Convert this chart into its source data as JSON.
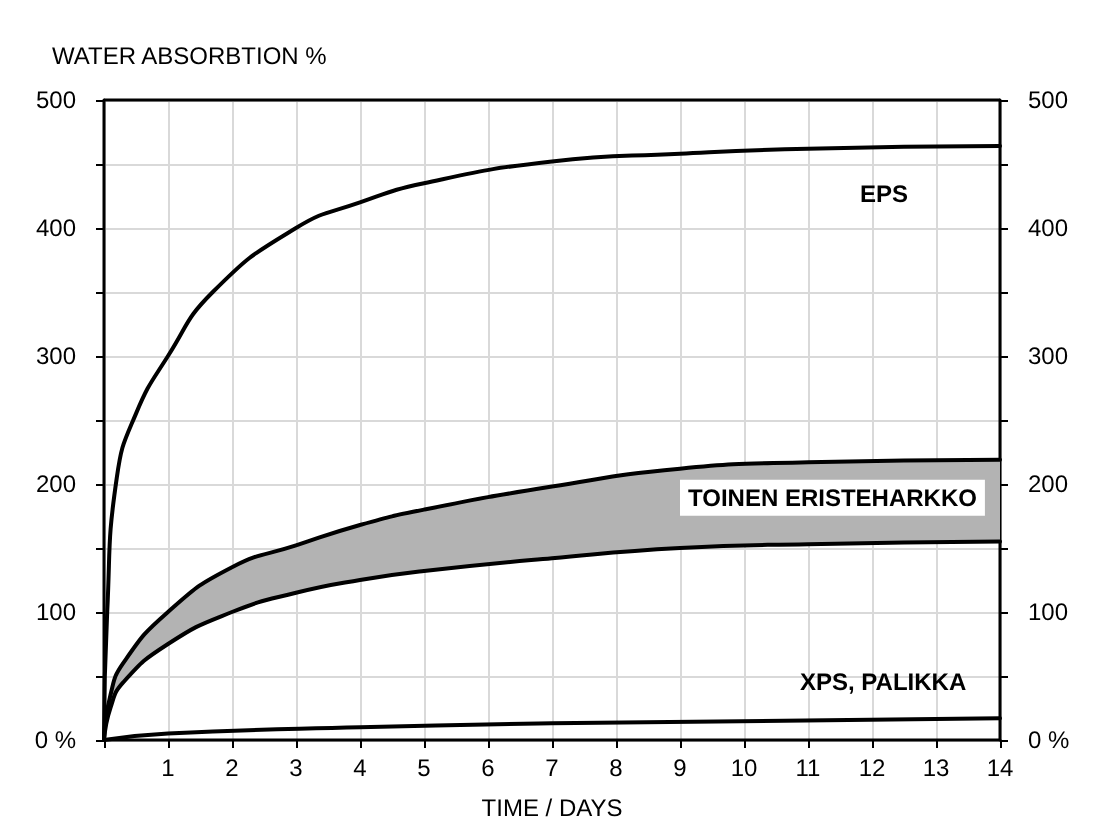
{
  "chart_data": {
    "type": "line",
    "ylabel": "WATER ABSORBTION %",
    "xlabel": "TIME / DAYS",
    "xlim": [
      0,
      14
    ],
    "xticks": [
      {
        "value": 0,
        "label": null
      },
      1,
      2,
      3,
      4,
      5,
      6,
      7,
      8,
      9,
      10,
      11,
      12,
      13,
      14
    ],
    "ylim": [
      0,
      500
    ],
    "yticks": [
      {
        "value": 0,
        "label": "0 %"
      },
      {
        "value": 50,
        "label": null
      },
      100,
      {
        "value": 150,
        "label": null
      },
      200,
      {
        "value": 250,
        "label": null
      },
      300,
      {
        "value": 350,
        "label": null
      },
      400,
      {
        "value": 450,
        "label": null
      },
      500
    ],
    "y2lim": [
      0,
      500
    ],
    "y2ticks": [
      {
        "value": 0,
        "label": "0 %"
      },
      {
        "value": 50,
        "label": null
      },
      100,
      {
        "value": 150,
        "label": null
      },
      200,
      {
        "value": 250,
        "label": null
      },
      300,
      {
        "value": 350,
        "label": null
      },
      400,
      {
        "value": 450,
        "label": null
      },
      500
    ],
    "grid": true,
    "marker": "none",
    "line_style": "solid",
    "series": [
      {
        "name": "EPS",
        "color": "#000000",
        "x": [
          0,
          0.05,
          0.2,
          0.5,
          1,
          1.7,
          3,
          4,
          5,
          7,
          9,
          11,
          14
        ],
        "values": [
          0,
          100,
          205,
          255,
          300,
          350,
          400,
          420,
          435,
          452,
          458,
          462,
          464
        ]
      },
      {
        "name": "TOINEN ERISTEHARKKO",
        "color": "#000000",
        "x": [
          0,
          0.1,
          0.3,
          1,
          2,
          3,
          4,
          5,
          7,
          9,
          11,
          14
        ],
        "values": [
          0,
          35,
          60,
          100,
          135,
          152,
          168,
          180,
          198,
          212,
          217,
          219
        ],
        "lower": [
          0,
          25,
          45,
          75,
          100,
          115,
          125,
          132,
          142,
          150,
          153,
          155
        ],
        "upper": [
          0,
          35,
          60,
          100,
          135,
          152,
          168,
          180,
          198,
          212,
          217,
          219
        ]
      },
      {
        "color": "#000000",
        "x": [
          0,
          0.1,
          0.3,
          1,
          2,
          3,
          4,
          5,
          7,
          9,
          11,
          14
        ],
        "values": [
          0,
          25,
          45,
          75,
          100,
          115,
          125,
          132,
          142,
          150,
          153,
          155
        ]
      },
      {
        "name": "XPS, PALIKKA",
        "color": "#000000",
        "x": [
          0,
          1,
          4,
          7,
          14
        ],
        "values": [
          0,
          5,
          10,
          13,
          17
        ]
      }
    ]
  }
}
